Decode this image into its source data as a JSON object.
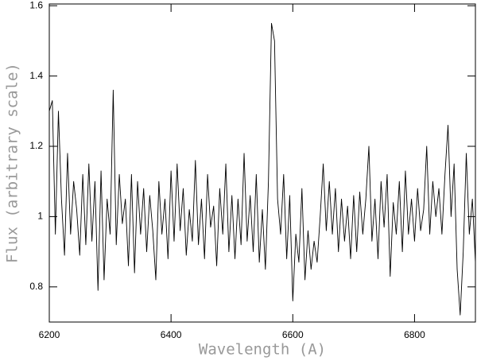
{
  "chart_data": {
    "type": "line",
    "xlabel": "Wavelength (A)",
    "ylabel": "Flux (arbitrary scale)",
    "xlim": [
      6200,
      6900
    ],
    "ylim": [
      0.7,
      1.605
    ],
    "xticks": [
      6200,
      6400,
      6600,
      6800
    ],
    "yticks": [
      0.8,
      1,
      1.2,
      1.4,
      1.6
    ],
    "x": [
      6200,
      6205,
      6210,
      6215,
      6220,
      6225,
      6230,
      6235,
      6240,
      6245,
      6250,
      6255,
      6260,
      6265,
      6270,
      6275,
      6280,
      6285,
      6290,
      6295,
      6300,
      6305,
      6310,
      6315,
      6320,
      6325,
      6330,
      6335,
      6340,
      6345,
      6350,
      6355,
      6360,
      6365,
      6370,
      6375,
      6380,
      6385,
      6390,
      6395,
      6400,
      6405,
      6410,
      6415,
      6420,
      6425,
      6430,
      6435,
      6440,
      6445,
      6450,
      6455,
      6460,
      6465,
      6470,
      6475,
      6480,
      6485,
      6490,
      6495,
      6500,
      6505,
      6510,
      6515,
      6520,
      6525,
      6530,
      6535,
      6540,
      6545,
      6550,
      6555,
      6560,
      6565,
      6570,
      6575,
      6580,
      6585,
      6590,
      6595,
      6600,
      6605,
      6610,
      6615,
      6620,
      6625,
      6630,
      6635,
      6640,
      6645,
      6650,
      6655,
      6660,
      6665,
      6670,
      6675,
      6680,
      6685,
      6690,
      6695,
      6700,
      6705,
      6710,
      6715,
      6720,
      6725,
      6730,
      6735,
      6740,
      6745,
      6750,
      6755,
      6760,
      6765,
      6770,
      6775,
      6780,
      6785,
      6790,
      6795,
      6800,
      6805,
      6810,
      6815,
      6820,
      6825,
      6830,
      6835,
      6840,
      6845,
      6850,
      6855,
      6860,
      6865,
      6870,
      6875,
      6880,
      6885,
      6890,
      6895,
      6900
    ],
    "series": [
      {
        "color": "#000000",
        "values": [
          1.3,
          1.33,
          0.95,
          1.3,
          1.05,
          0.89,
          1.18,
          0.95,
          1.1,
          1.02,
          0.89,
          1.12,
          0.92,
          1.15,
          0.93,
          1.1,
          0.79,
          1.13,
          0.82,
          1.05,
          0.95,
          1.36,
          0.92,
          1.12,
          0.98,
          1.05,
          0.86,
          1.12,
          0.84,
          1.1,
          0.95,
          1.08,
          0.9,
          1.06,
          0.96,
          0.82,
          1.1,
          0.95,
          1.05,
          0.88,
          1.13,
          0.93,
          1.15,
          0.96,
          1.08,
          0.89,
          1.02,
          0.93,
          1.16,
          0.92,
          1.05,
          0.88,
          1.12,
          0.97,
          1.03,
          0.86,
          1.08,
          0.95,
          1.15,
          0.9,
          1.06,
          0.88,
          1.05,
          0.92,
          1.18,
          0.93,
          1.06,
          0.9,
          1.12,
          0.87,
          1.02,
          0.85,
          1.1,
          1.55,
          1.5,
          1.05,
          0.95,
          1.12,
          0.88,
          1.06,
          0.76,
          0.95,
          0.87,
          1.08,
          0.82,
          0.96,
          0.85,
          0.93,
          0.87,
          1.0,
          1.15,
          0.96,
          1.1,
          0.95,
          1.08,
          0.9,
          1.05,
          0.93,
          1.03,
          0.88,
          1.06,
          0.9,
          1.07,
          0.95,
          1.05,
          1.2,
          0.93,
          1.05,
          0.88,
          1.1,
          0.97,
          1.12,
          0.83,
          1.04,
          0.95,
          1.1,
          0.9,
          1.13,
          0.95,
          1.05,
          0.93,
          1.08,
          0.96,
          1.02,
          1.2,
          0.95,
          1.1,
          1.0,
          1.08,
          0.95,
          1.12,
          1.26,
          1.0,
          1.15,
          0.85,
          0.72,
          0.9,
          1.18,
          0.95,
          1.05,
          0.87
        ]
      }
    ]
  }
}
